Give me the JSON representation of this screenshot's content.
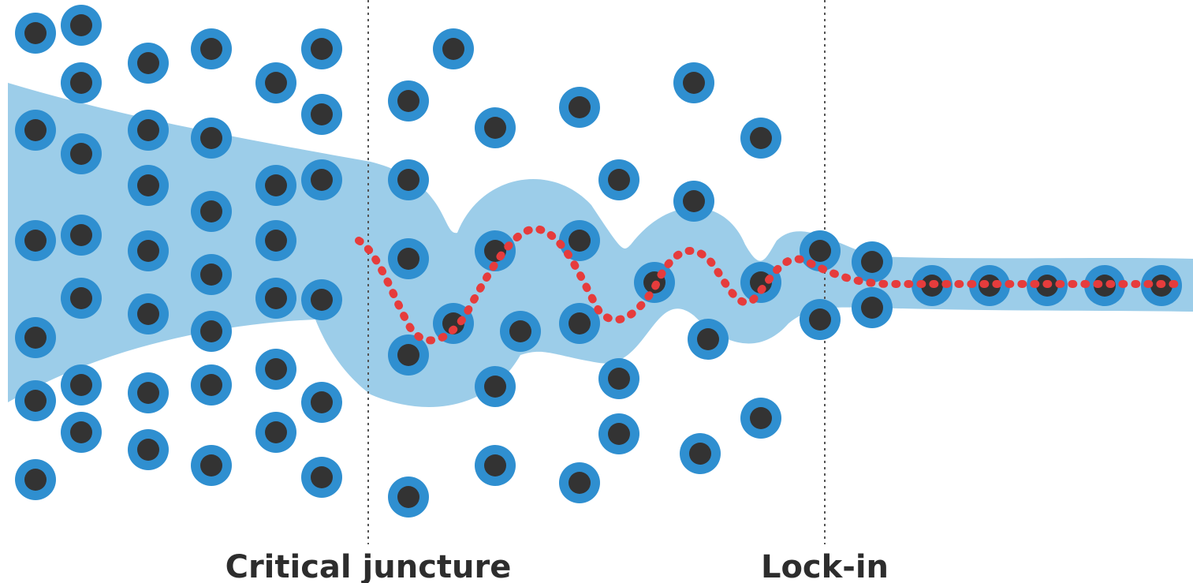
{
  "labels": {
    "critical_juncture": "Critical juncture",
    "lock_in": "Lock-in"
  },
  "colors": {
    "background": "#ffffff",
    "possibility_band": "#9ccde9",
    "node_ring": "#2f8fd0",
    "node_core": "#333333",
    "path": "#e63c3c",
    "divider": "#555555",
    "label_text": "#2d2d2d"
  }
}
